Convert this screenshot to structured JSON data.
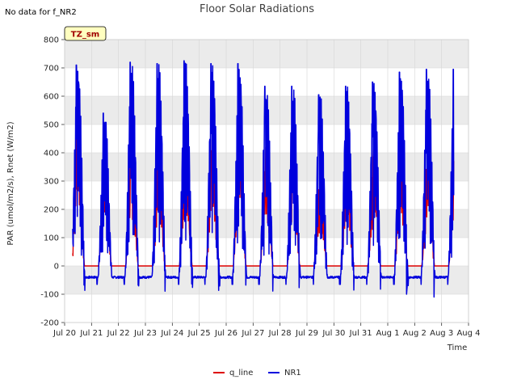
{
  "chart_data": {
    "type": "line",
    "title": "Floor Solar Radiations",
    "no_data_note": "No data for f_NR2",
    "xlabel": "Time",
    "ylabel": "PAR (umol/m2/s), Rnet (W/m2)",
    "xlim": [
      0,
      15
    ],
    "ylim": [
      -200,
      800
    ],
    "yticks": [
      -200,
      -100,
      0,
      100,
      200,
      300,
      400,
      500,
      600,
      700,
      800
    ],
    "xtick_labels": [
      "Jul 20",
      "Jul 21",
      "Jul 22",
      "Jul 23",
      "Jul 24",
      "Jul 25",
      "Jul 26",
      "Jul 27",
      "Jul 28",
      "Jul 29",
      "Jul 30",
      "Jul 31",
      "Aug 1",
      "Aug 2",
      "Aug 3",
      "Aug 4"
    ],
    "badge": "TZ_sm",
    "band_color": "#ebebeb",
    "series": [
      {
        "name": "q_line",
        "color": "#dd0000",
        "day_peaks": [
          550,
          430,
          430,
          430,
          460,
          445,
          540,
          420,
          425,
          310,
          405,
          430,
          435,
          430
        ],
        "night_value": 0
      },
      {
        "name": "NR1",
        "color": "#0000dd",
        "day_peaks": [
          710,
          540,
          720,
          715,
          725,
          715,
          715,
          635,
          635,
          605,
          635,
          650,
          685,
          695
        ],
        "night_value": -40,
        "min_value": -110
      }
    ],
    "x_range_days": [
      0.3,
      14.45
    ]
  }
}
